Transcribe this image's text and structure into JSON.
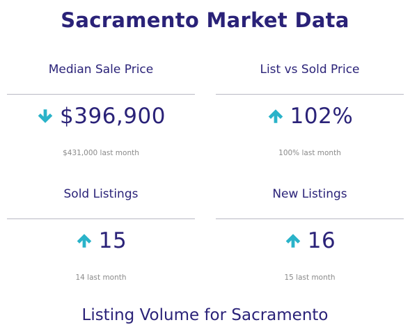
{
  "page": {
    "title": "Sacramento Market Data",
    "section_title": "Listing Volume for Sacramento"
  },
  "colors": {
    "heading": "#2a2278",
    "arrow": "#2ab3c9",
    "muted": "#8a8a8a",
    "divider": "#b9b9c4"
  },
  "cards": [
    {
      "label": "Median Sale Price",
      "value": "$396,900",
      "trend": "down",
      "icon": "arrow-down-icon",
      "sub": "$431,000 last month"
    },
    {
      "label": "List vs Sold Price",
      "value": "102%",
      "trend": "up",
      "icon": "arrow-up-icon",
      "sub": "100% last month"
    },
    {
      "label": "Sold Listings",
      "value": "15",
      "trend": "up",
      "icon": "arrow-up-icon",
      "sub": "14 last month"
    },
    {
      "label": "New Listings",
      "value": "16",
      "trend": "up",
      "icon": "arrow-up-icon",
      "sub": "15 last month"
    }
  ]
}
